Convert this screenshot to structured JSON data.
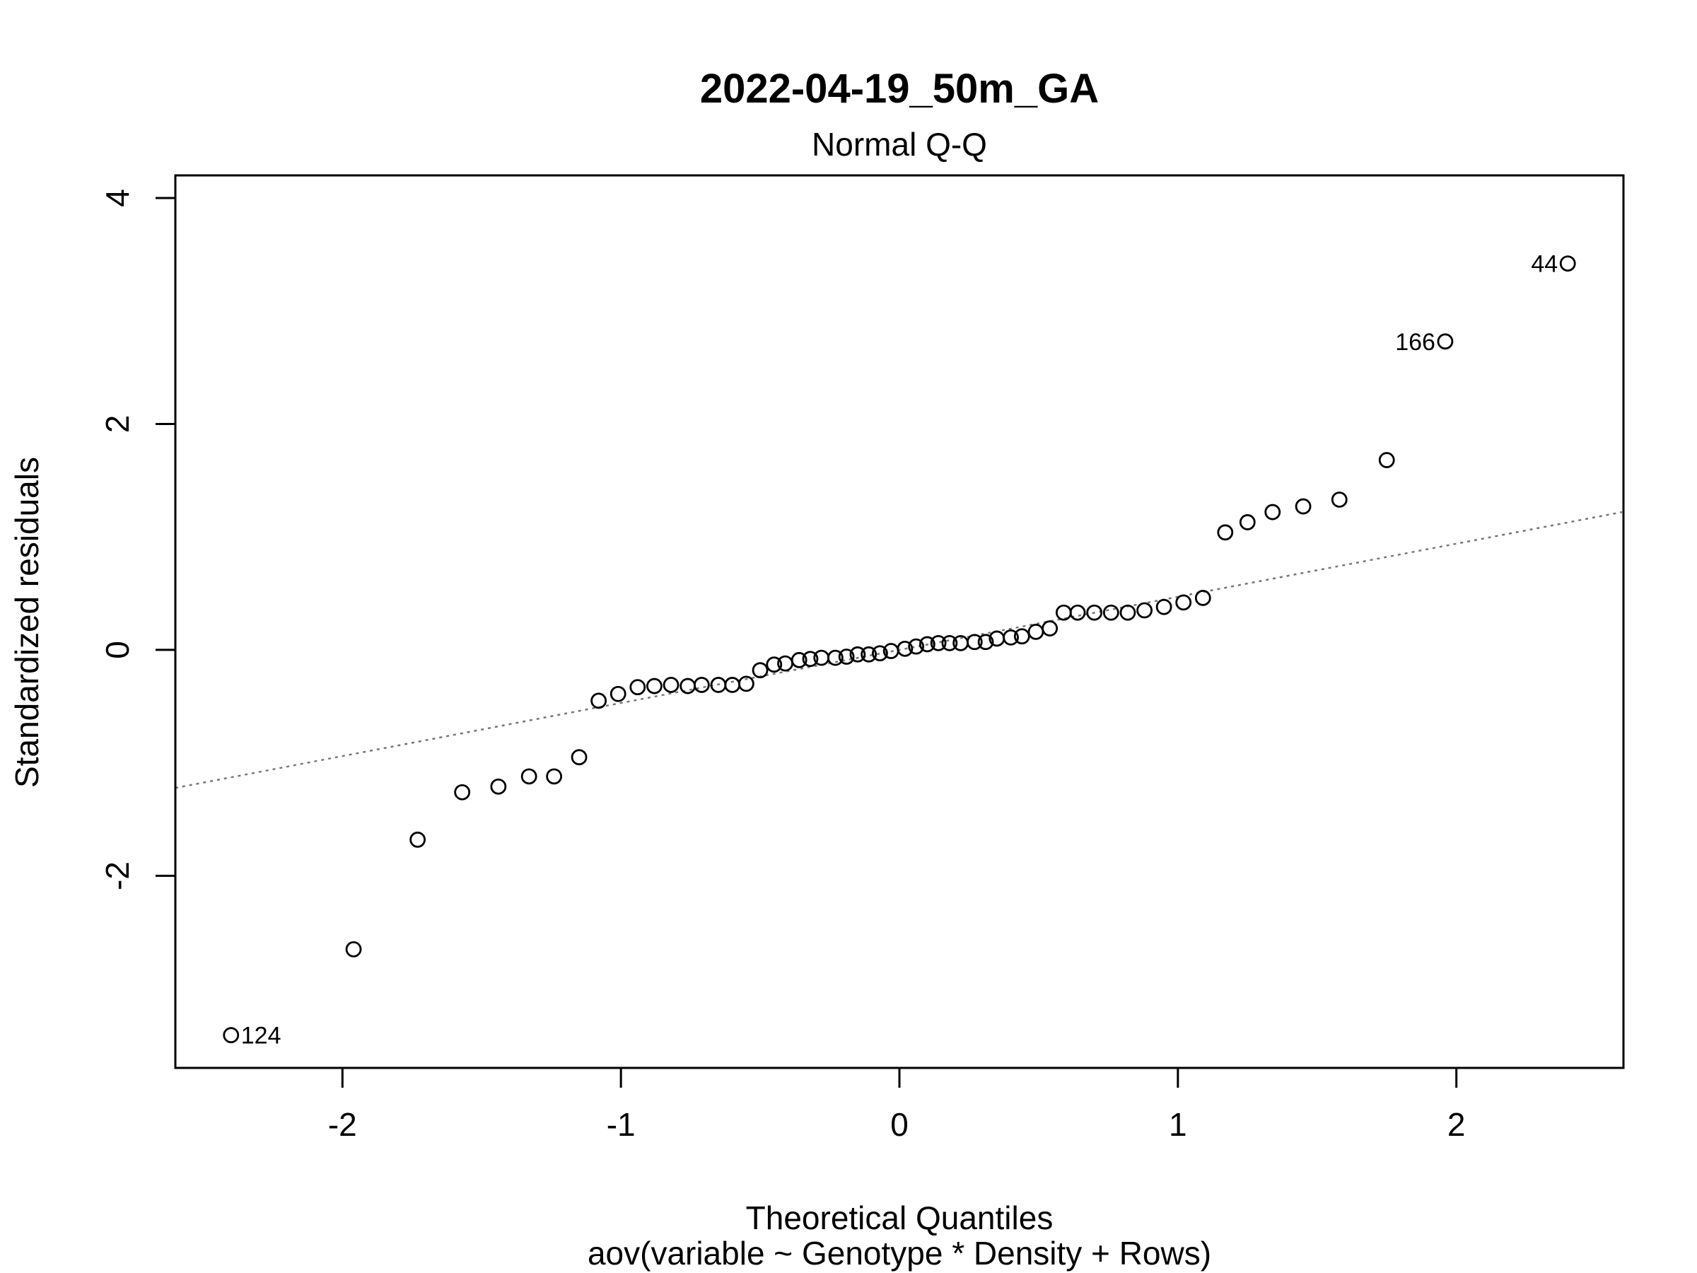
{
  "chart_data": {
    "type": "scatter",
    "title": "2022-04-19_50m_GA",
    "subtitle": "Normal Q-Q",
    "xlabel": "Theoretical Quantiles",
    "xlabel2": "aov(variable ~ Genotype * Density + Rows)",
    "ylabel": "Standardized residuals",
    "xlim": [
      -2.6,
      2.6
    ],
    "ylim": [
      -3.7,
      4.2
    ],
    "xticks": [
      -2,
      -1,
      0,
      1,
      2
    ],
    "xtick_labels": [
      "-2",
      "-1",
      "0",
      "1",
      "2"
    ],
    "yticks": [
      -2,
      0,
      2,
      4
    ],
    "ytick_labels": [
      "-2",
      "0",
      "2",
      "4"
    ],
    "grid": false,
    "reference_line": {
      "slope": 0.47,
      "intercept": 0.0,
      "style": "dotted",
      "color": "#777777"
    },
    "point_labels": [
      {
        "x": 2.4,
        "y": 3.42,
        "text": "44",
        "side": "left"
      },
      {
        "x": 1.96,
        "y": 2.73,
        "text": "166",
        "side": "left"
      },
      {
        "x": -2.4,
        "y": -3.41,
        "text": "124",
        "side": "right"
      }
    ],
    "series": [
      {
        "x": [
          -2.4,
          -1.96,
          -1.73,
          -1.57,
          -1.44,
          -1.33,
          -1.24,
          -1.15,
          -1.08,
          -1.01,
          -0.94,
          -0.88,
          -0.82,
          -0.76,
          -0.71,
          -0.65,
          -0.6,
          -0.55,
          -0.5,
          -0.45,
          -0.41,
          -0.36,
          -0.32,
          -0.28,
          -0.23,
          -0.19,
          -0.15,
          -0.11,
          -0.07,
          -0.03,
          0.02,
          0.06,
          0.1,
          0.14,
          0.18,
          0.22,
          0.27,
          0.31,
          0.35,
          0.4,
          0.44,
          0.49,
          0.54,
          0.59,
          0.64,
          0.7,
          0.76,
          0.82,
          0.88,
          0.95,
          1.02,
          1.09,
          1.17,
          1.25,
          1.34,
          1.45,
          1.58,
          1.75,
          1.96,
          2.4
        ],
        "y": [
          -3.41,
          -2.65,
          -1.68,
          -1.26,
          -1.21,
          -1.12,
          -1.12,
          -0.95,
          -0.45,
          -0.39,
          -0.33,
          -0.32,
          -0.31,
          -0.32,
          -0.31,
          -0.31,
          -0.31,
          -0.3,
          -0.18,
          -0.13,
          -0.12,
          -0.09,
          -0.08,
          -0.07,
          -0.07,
          -0.06,
          -0.04,
          -0.04,
          -0.03,
          -0.01,
          0.01,
          0.03,
          0.05,
          0.06,
          0.06,
          0.06,
          0.07,
          0.07,
          0.1,
          0.11,
          0.12,
          0.16,
          0.19,
          0.33,
          0.33,
          0.33,
          0.33,
          0.33,
          0.35,
          0.38,
          0.42,
          0.46,
          1.04,
          1.13,
          1.22,
          1.27,
          1.33,
          1.68,
          2.73,
          3.42
        ]
      }
    ]
  }
}
